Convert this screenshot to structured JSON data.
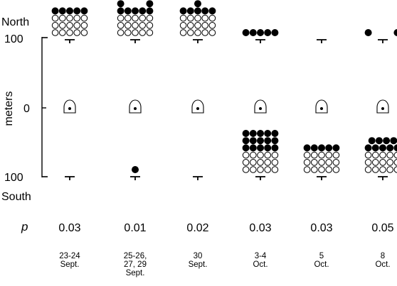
{
  "chart_data": {
    "type": "scatter",
    "ylabel": "meters",
    "y_ticks": [
      "100",
      "0",
      "100"
    ],
    "north_label": "North",
    "south_label": "South",
    "p_label": "p",
    "columns": [
      {
        "date": [
          "23-24",
          "Sept."
        ],
        "p": "0.03",
        "north": {
          "filled_rows": [
            5
          ],
          "open_rows": [
            5,
            5,
            5
          ]
        },
        "south": {
          "filled_rows": [],
          "open_rows": []
        }
      },
      {
        "date": [
          "25-26,",
          "27, 29",
          "Sept."
        ],
        "p": "0.01",
        "north": {
          "filled_rows": [
            2,
            5
          ],
          "open_rows": [
            5,
            5,
            5
          ]
        },
        "south": {
          "filled_rows": [
            1
          ],
          "open_rows": []
        }
      },
      {
        "date": [
          "30",
          "Sept."
        ],
        "p": "0.02",
        "north": {
          "filled_rows": [
            1,
            5
          ],
          "open_rows": [
            5,
            5,
            5
          ]
        },
        "south": {
          "filled_rows": [],
          "open_rows": []
        }
      },
      {
        "date": [
          "3-4",
          "Oct."
        ],
        "p": "0.03",
        "north": {
          "filled_rows": [
            5
          ],
          "open_rows": []
        },
        "south": {
          "filled_rows": [
            5,
            5,
            5
          ],
          "open_rows": [
            5,
            5,
            5
          ]
        }
      },
      {
        "date": [
          "5",
          "Oct."
        ],
        "p": "0.03",
        "north": {
          "filled_rows": [],
          "open_rows": []
        },
        "south": {
          "filled_rows": [
            5
          ],
          "open_rows": [
            5,
            5,
            5
          ]
        }
      },
      {
        "date": [
          "8",
          "Oct."
        ],
        "p": "0.05",
        "north": {
          "filled_rows": [
            2
          ],
          "open_rows": []
        },
        "south": {
          "filled_rows": [
            4,
            5
          ],
          "open_rows": [
            5,
            5,
            5
          ]
        }
      }
    ]
  }
}
